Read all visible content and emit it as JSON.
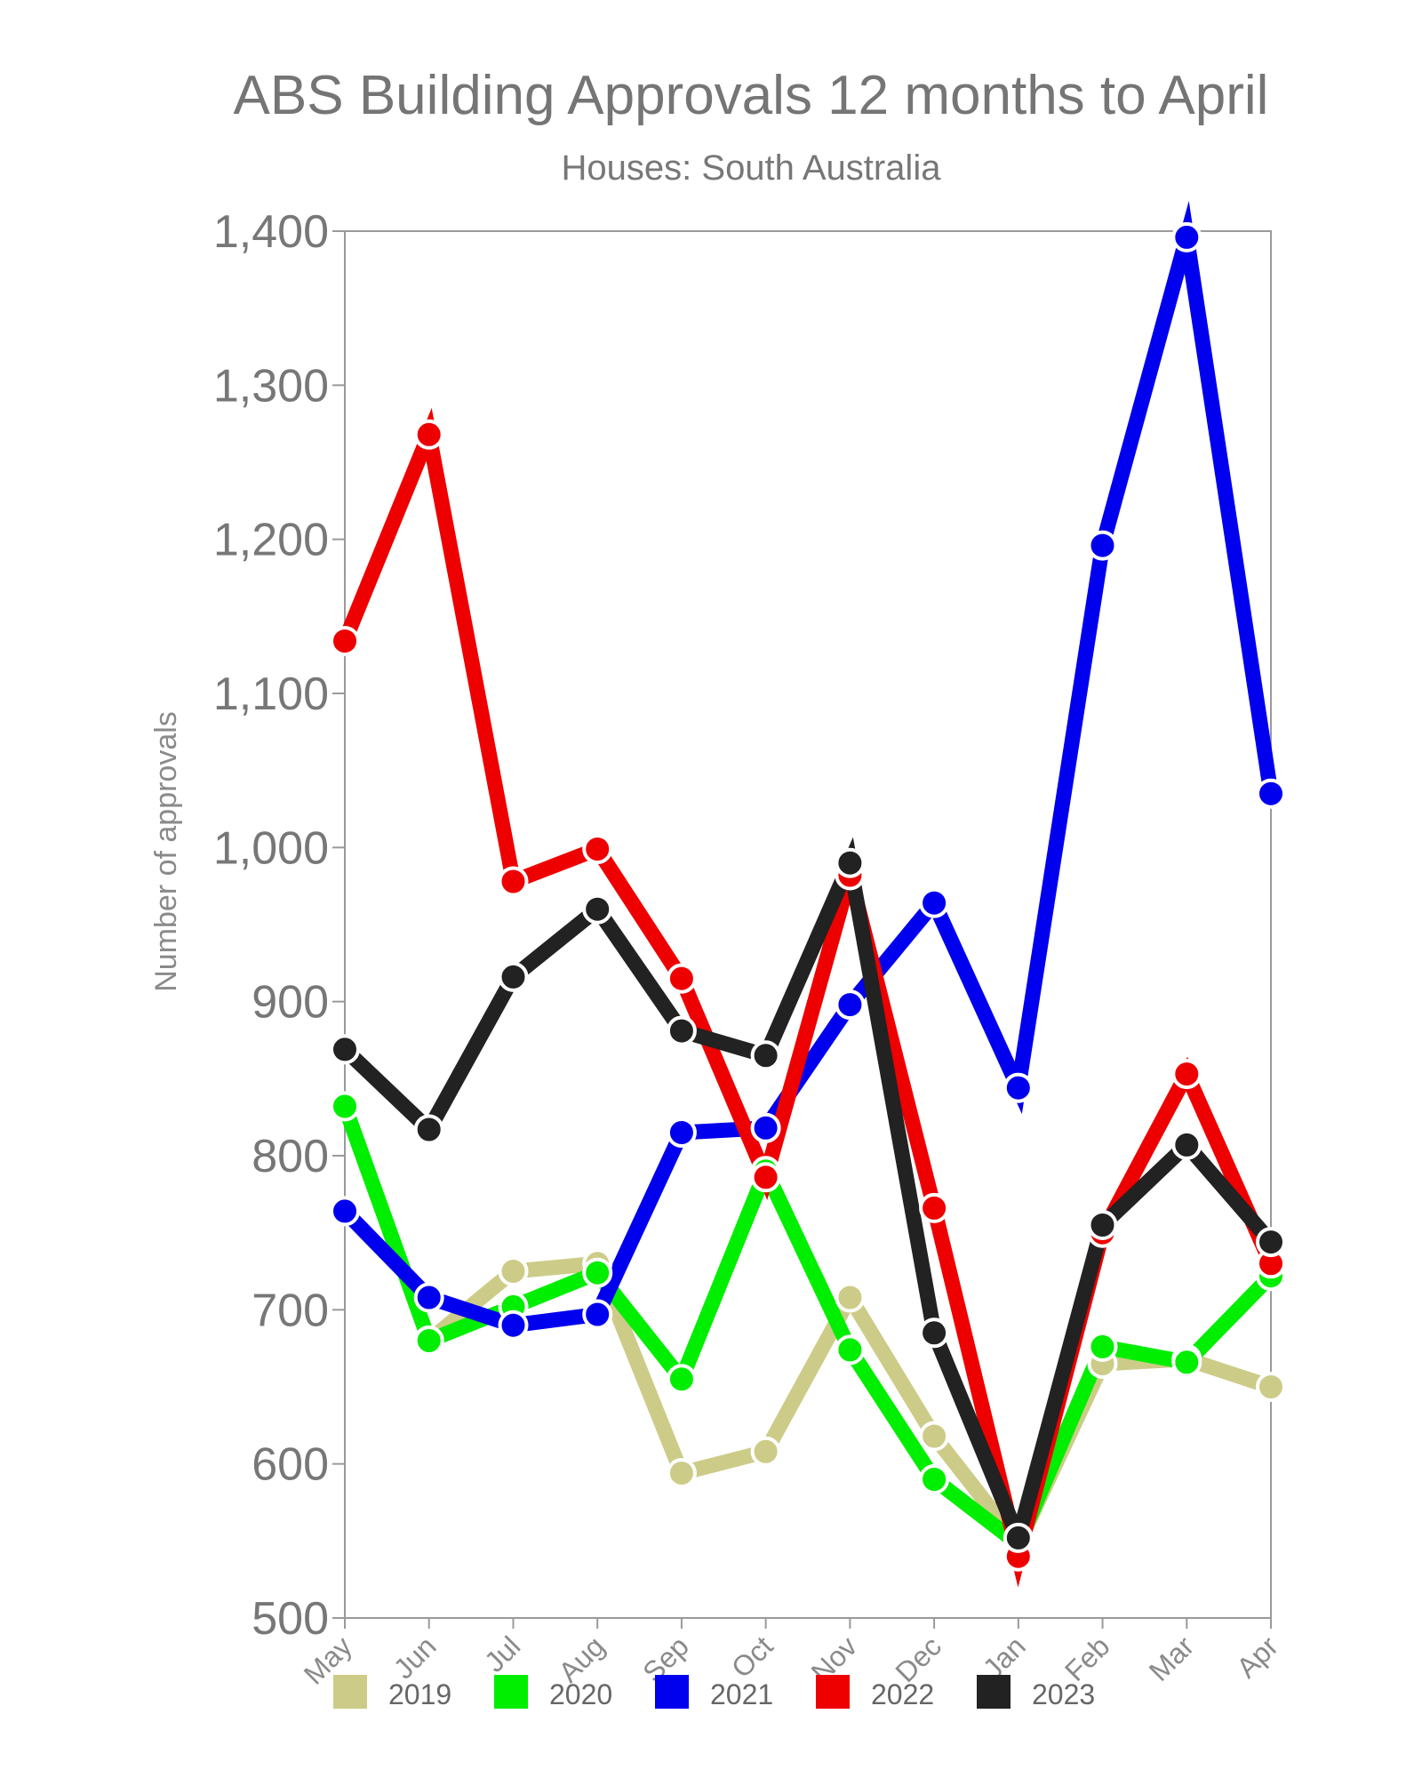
{
  "chart_data": {
    "type": "line",
    "title": "ABS Building Approvals 12 months to April",
    "subtitle": "Houses: South Australia",
    "ylabel": "Number of approvals",
    "xlabel": "",
    "categories": [
      "May",
      "Jun",
      "Jul",
      "Aug",
      "Sep",
      "Oct",
      "Nov",
      "Dec",
      "Jan",
      "Feb",
      "Mar",
      "Apr"
    ],
    "ylim": [
      500,
      1400
    ],
    "yticks": [
      500,
      600,
      700,
      800,
      900,
      1000,
      1100,
      1200,
      1300,
      1400
    ],
    "ytick_labels": [
      "500",
      "600",
      "700",
      "800",
      "900",
      "1,000",
      "1,100",
      "1,200",
      "1,300",
      "1,400"
    ],
    "legend_position": "bottom",
    "series": [
      {
        "name": "2019",
        "color": "#cccc88",
        "values": [
          null,
          680,
          725,
          730,
          594,
          608,
          708,
          618,
          548,
          665,
          668,
          650
        ]
      },
      {
        "name": "2020",
        "color": "#00ee00",
        "values": [
          832,
          680,
          702,
          724,
          655,
          790,
          674,
          590,
          548,
          676,
          666,
          722
        ]
      },
      {
        "name": "2021",
        "color": "#0000ee",
        "values": [
          764,
          708,
          690,
          697,
          815,
          818,
          898,
          964,
          844,
          1196,
          1396,
          1035
        ]
      },
      {
        "name": "2022",
        "color": "#ee0000",
        "values": [
          1134,
          1268,
          978,
          999,
          915,
          786,
          982,
          766,
          540,
          750,
          853,
          730
        ]
      },
      {
        "name": "2023",
        "color": "#222222",
        "values": [
          869,
          817,
          916,
          960,
          881,
          865,
          990,
          685,
          552,
          755,
          807,
          744
        ]
      }
    ]
  }
}
